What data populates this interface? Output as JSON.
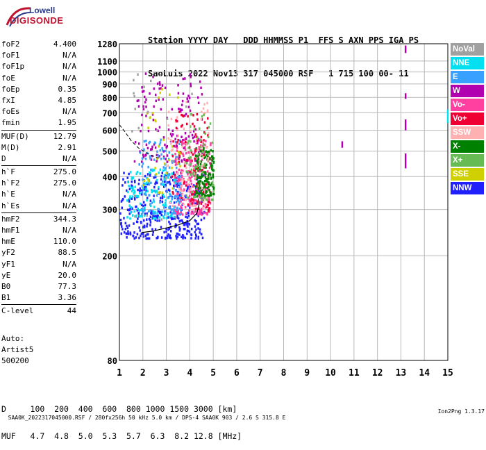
{
  "logo": {
    "line1": "Lowell",
    "line2": "DIGISONDE"
  },
  "header": {
    "labels": "Station YYYY DAY   DDD HHMMSS P1  FFS S AXN PPS IGA PS",
    "values": "SaoLuis 2022 Nov13 317 045000 RSF   1 715 100 00- 11"
  },
  "params": [
    [
      {
        "k": "foF2",
        "v": "4.400"
      },
      {
        "k": "foF1",
        "v": "N/A"
      },
      {
        "k": "foF1p",
        "v": "N/A"
      },
      {
        "k": "foE",
        "v": "N/A"
      },
      {
        "k": "foEp",
        "v": "0.35"
      },
      {
        "k": "fxI",
        "v": "4.85"
      },
      {
        "k": "foEs",
        "v": "N/A"
      },
      {
        "k": "fmin",
        "v": "1.95"
      }
    ],
    [
      {
        "k": "MUF(D)",
        "v": "12.79"
      },
      {
        "k": "M(D)",
        "v": "2.91"
      },
      {
        "k": "D",
        "v": "N/A"
      }
    ],
    [
      {
        "k": "h`F",
        "v": "275.0"
      },
      {
        "k": "h`F2",
        "v": "275.0"
      },
      {
        "k": "h`E",
        "v": "N/A"
      },
      {
        "k": "h`Es",
        "v": "N/A"
      }
    ],
    [
      {
        "k": "hmF2",
        "v": "344.3"
      },
      {
        "k": "hmF1",
        "v": "N/A"
      },
      {
        "k": "hmE",
        "v": "110.0"
      },
      {
        "k": "yF2",
        "v": "88.5"
      },
      {
        "k": "yF1",
        "v": "N/A"
      },
      {
        "k": "yE",
        "v": "20.0"
      },
      {
        "k": "B0",
        "v": "77.3"
      },
      {
        "k": "B1",
        "v": "3.36"
      }
    ],
    [
      {
        "k": "C-level",
        "v": "44"
      }
    ]
  ],
  "auto": {
    "line1": "Auto:",
    "line2": "Artist5",
    "line3": "500200"
  },
  "legend": [
    {
      "label": "NoVal",
      "color": "#a0a0a0"
    },
    {
      "label": "NNE",
      "color": "#00e0f0"
    },
    {
      "label": "E",
      "color": "#38a0ff"
    },
    {
      "label": "W",
      "color": "#b000b0"
    },
    {
      "label": "Vo-",
      "color": "#ff40a0"
    },
    {
      "label": "Vo+",
      "color": "#ee0033"
    },
    {
      "label": "SSW",
      "color": "#ffb0b0"
    },
    {
      "label": "X-",
      "color": "#008000"
    },
    {
      "label": "X+",
      "color": "#66bb55"
    },
    {
      "label": "SSE",
      "color": "#d0d000"
    },
    {
      "label": "NNW",
      "color": "#2020ff"
    }
  ],
  "bottom": {
    "distance_row": "D     100  200  400  600  800 1000 1500 3000 [km]",
    "muf_row": "MUF   4.7  4.8  5.0  5.3  5.7  6.3  8.2 12.8 [MHz]"
  },
  "footer": {
    "left": "SAA0K_2022317045000.RSF / 280fx256h 50 kHz 5.0 km / DPS-4 SAA0K 903 / 2.6 S 315.8 E",
    "right": "Ion2Png 1.3.17"
  },
  "chart_data": {
    "type": "scatter",
    "title": "",
    "xlabel": "",
    "ylabel": "",
    "x_unit": "MHz",
    "y_unit": "km",
    "xlim": [
      1,
      15
    ],
    "ylim": [
      80,
      1280
    ],
    "xticks": [
      1,
      2,
      3,
      4,
      5,
      6,
      7,
      8,
      9,
      10,
      11,
      12,
      13,
      14,
      15
    ],
    "yticks": [
      80,
      200,
      300,
      400,
      500,
      600,
      700,
      800,
      900,
      1000,
      1100,
      1280
    ],
    "y_scale": "log",
    "grid": true,
    "legend_position": "right",
    "profile_curve": {
      "name": "",
      "points": [
        [
          1.95,
          245
        ],
        [
          2.4,
          248
        ],
        [
          3.0,
          255
        ],
        [
          3.5,
          262
        ],
        [
          4.0,
          272
        ],
        [
          4.3,
          290
        ],
        [
          4.4,
          315
        ],
        [
          4.35,
          330
        ]
      ]
    },
    "oblique_curve": {
      "points": [
        [
          1.0,
          630
        ],
        [
          1.25,
          590
        ],
        [
          1.5,
          548
        ],
        [
          1.8,
          515
        ],
        [
          2.1,
          495
        ],
        [
          2.4,
          480
        ],
        [
          2.7,
          470
        ]
      ]
    },
    "trace_clusters": [
      {
        "series": "NNW",
        "x_range": [
          1.0,
          4.6
        ],
        "y_range": [
          235,
          420
        ],
        "density": 0.9
      },
      {
        "series": "Vo-",
        "x_range": [
          3.3,
          4.9
        ],
        "y_range": [
          290,
          560
        ],
        "density": 0.7
      },
      {
        "series": "W",
        "x_range": [
          1.6,
          4.5
        ],
        "y_range": [
          460,
          1000
        ],
        "density": 0.35
      },
      {
        "series": "X-",
        "x_range": [
          4.2,
          5.0
        ],
        "y_range": [
          340,
          520
        ],
        "density": 0.4
      },
      {
        "series": "NNE",
        "x_range": [
          1.3,
          3.4
        ],
        "y_range": [
          280,
          430
        ],
        "density": 0.3
      },
      {
        "series": "E",
        "x_range": [
          1.8,
          3.6
        ],
        "y_range": [
          290,
          560
        ],
        "density": 0.3
      },
      {
        "series": "SSW",
        "x_range": [
          3.0,
          4.8
        ],
        "y_range": [
          300,
          800
        ],
        "density": 0.2
      },
      {
        "series": "Vo+",
        "x_range": [
          3.2,
          4.8
        ],
        "y_range": [
          300,
          720
        ],
        "density": 0.2
      },
      {
        "series": "X+",
        "x_range": [
          3.8,
          5.0
        ],
        "y_range": [
          330,
          700
        ],
        "density": 0.15
      },
      {
        "series": "SSE",
        "x_range": [
          1.6,
          3.6
        ],
        "y_range": [
          350,
          900
        ],
        "density": 0.08
      },
      {
        "series": "NoVal",
        "x_range": [
          1.5,
          4.2
        ],
        "y_range": [
          260,
          1100
        ],
        "density": 0.06
      }
    ],
    "isolated_traces": [
      {
        "series": "W",
        "x": 13.2,
        "y_range": [
          1180,
          1260
        ]
      },
      {
        "series": "W",
        "x": 13.2,
        "y_range": [
          790,
          830
        ]
      },
      {
        "series": "W",
        "x": 13.2,
        "y_range": [
          600,
          660
        ]
      },
      {
        "series": "W",
        "x": 13.2,
        "y_range": [
          430,
          490
        ]
      },
      {
        "series": "NNE",
        "x": 15.0,
        "y_range": [
          640,
          720
        ]
      },
      {
        "series": "W",
        "x": 10.5,
        "y_range": [
          515,
          545
        ]
      }
    ]
  }
}
